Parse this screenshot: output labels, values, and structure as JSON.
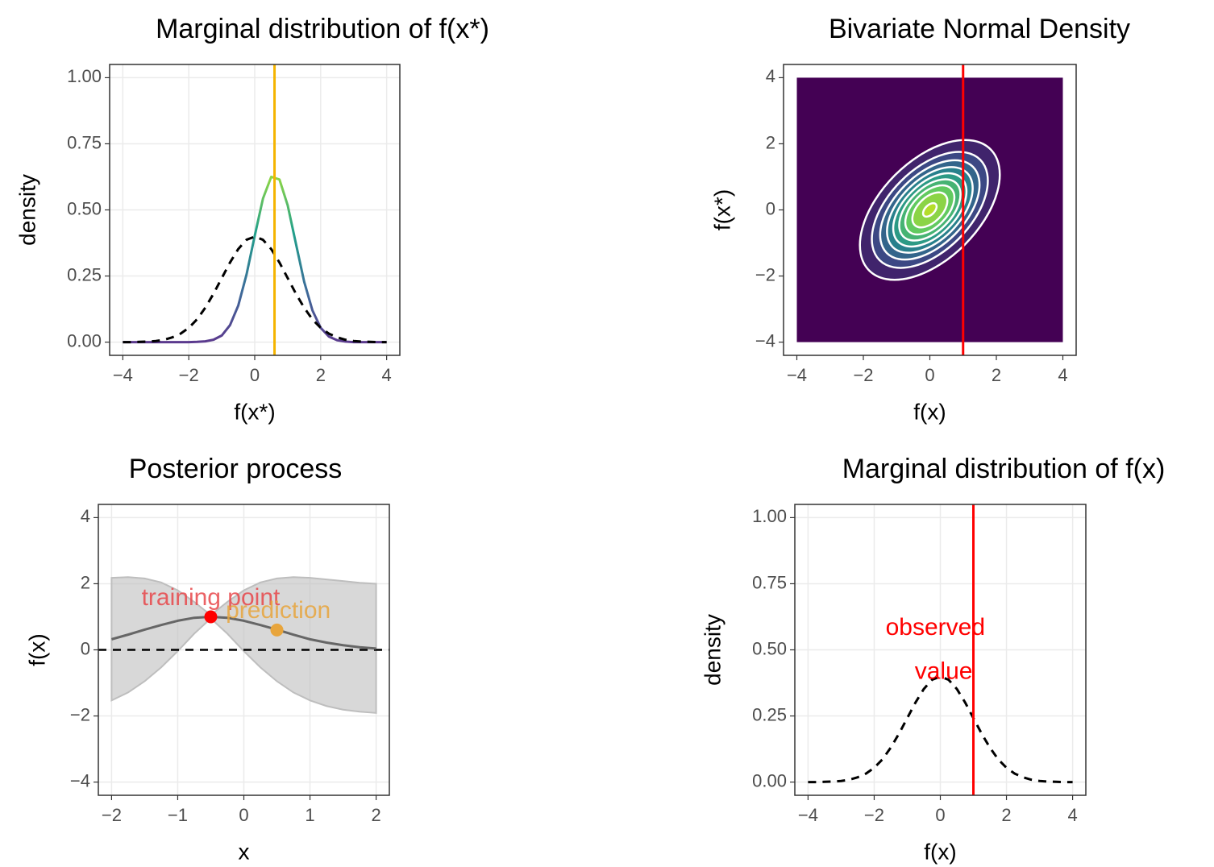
{
  "chart_data": [
    {
      "type": "line",
      "title": "Marginal distribution of f(x*)",
      "xlabel": "f(x*)",
      "ylabel": "density",
      "x": [
        -4,
        -3.75,
        -3.5,
        -3.25,
        -3,
        -2.75,
        -2.5,
        -2.25,
        -2,
        -1.75,
        -1.5,
        -1.25,
        -1,
        -0.75,
        -0.5,
        -0.25,
        0,
        0.25,
        0.5,
        0.75,
        1,
        1.25,
        1.5,
        1.75,
        2,
        2.25,
        2.5,
        2.75,
        3,
        3.25,
        3.5,
        3.75,
        4
      ],
      "series": [
        {
          "palette": [
            "#5b3a8e",
            "#3b6f9a",
            "#21a08a",
            "#8fd744"
          ],
          "values": [
            0,
            0,
            0,
            0,
            0,
            0,
            0,
            0,
            0,
            0.001,
            0.003,
            0.009,
            0.025,
            0.064,
            0.138,
            0.255,
            0.402,
            0.543,
            0.625,
            0.615,
            0.517,
            0.372,
            0.228,
            0.12,
            0.054,
            0.021,
            0.007,
            0.002,
            0,
            0,
            0,
            0,
            0
          ]
        },
        {
          "color": "#000000",
          "linetype": "dashed",
          "values": [
            0,
            0,
            0.001,
            0.002,
            0.004,
            0.009,
            0.018,
            0.032,
            0.054,
            0.086,
            0.13,
            0.183,
            0.242,
            0.301,
            0.352,
            0.387,
            0.399,
            0.387,
            0.352,
            0.301,
            0.242,
            0.183,
            0.13,
            0.086,
            0.054,
            0.032,
            0.018,
            0.009,
            0.004,
            0.002,
            0.001,
            0,
            0
          ]
        }
      ],
      "vline": {
        "x": 0.6,
        "color": "#f5b400"
      },
      "xlim": [
        -4.4,
        4.4
      ],
      "xticks": [
        {
          "value": -4,
          "label": "−4"
        },
        {
          "value": -2,
          "label": "−2"
        },
        0,
        2,
        4
      ],
      "ylim": [
        -0.05,
        1.05
      ],
      "yticks": [
        {
          "value": 0,
          "label": "0.00"
        },
        0.25,
        {
          "value": 0.5,
          "label": "0.50"
        },
        0.75,
        {
          "value": 1,
          "label": "1.00"
        }
      ],
      "grid": true
    },
    {
      "type": "contour",
      "title": "Bivariate Normal Density",
      "xlabel": "f(x)",
      "ylabel": "f(x*)",
      "correlation": 0.5,
      "levels": [
        0.02,
        0.04,
        0.06,
        0.08,
        0.1,
        0.12,
        0.14,
        0.16,
        0.18
      ],
      "raster_xlim": [
        -4,
        4
      ],
      "raster_ylim": [
        -4,
        4
      ],
      "background": "#440154",
      "contour_color": "#ffffff",
      "palette": [
        "#440154",
        "#3b528b",
        "#21908c",
        "#5dc963",
        "#bddf26"
      ],
      "vline": {
        "x": 1,
        "color": "#ff0000"
      },
      "xlim": [
        -4.4,
        4.4
      ],
      "xticks": [
        {
          "value": -4,
          "label": "−4"
        },
        {
          "value": -2,
          "label": "−2"
        },
        0,
        2,
        4
      ],
      "ylim": [
        -4.4,
        4.4
      ],
      "yticks": [
        {
          "value": -4,
          "label": "−4"
        },
        {
          "value": -2,
          "label": "−2"
        },
        0,
        2,
        4
      ],
      "grid": false
    },
    {
      "type": "line",
      "title": "Posterior process",
      "xlabel": "x",
      "ylabel": "f(x)",
      "x": [
        -2,
        -1.75,
        -1.5,
        -1.25,
        -1,
        -0.75,
        -0.5,
        -0.25,
        0,
        0.25,
        0.5,
        0.75,
        1,
        1.25,
        1.5,
        1.75,
        2
      ],
      "ribbon": {
        "color": "#bebebe",
        "upper": [
          2.18,
          2.2,
          2.16,
          2.04,
          1.8,
          1.45,
          1.05,
          1.45,
          1.8,
          2.04,
          2.16,
          2.2,
          2.18,
          2.13,
          2.08,
          2.03,
          2
        ],
        "lower": [
          -1.53,
          -1.29,
          -0.95,
          -0.53,
          -0.04,
          0.49,
          0.95,
          0.49,
          -0.04,
          -0.53,
          -0.95,
          -1.29,
          -1.53,
          -1.7,
          -1.81,
          -1.87,
          -1.91
        ]
      },
      "hline": {
        "y": 0,
        "color": "#000000"
      },
      "series": [
        {
          "color": "#666666",
          "values": [
            0.32,
            0.46,
            0.61,
            0.75,
            0.88,
            0.97,
            1,
            0.97,
            0.88,
            0.75,
            0.61,
            0.46,
            0.32,
            0.22,
            0.14,
            0.08,
            0.04
          ]
        }
      ],
      "points": [
        {
          "x": -0.5,
          "y": 1,
          "color": "#ff0000"
        },
        {
          "x": 0.5,
          "y": 0.6,
          "color": "#e8a53c"
        }
      ],
      "annotations": [
        {
          "text": "training point",
          "x": -0.5,
          "y": 1.55,
          "color": "#e8474a"
        },
        {
          "text": "prediction",
          "x": 0.52,
          "y": 1.15,
          "color": "#e8a53c"
        }
      ],
      "xlim": [
        -2.2,
        2.2
      ],
      "xticks": [
        {
          "value": -2,
          "label": "−2"
        },
        {
          "value": -1,
          "label": "−1"
        },
        0,
        1,
        2
      ],
      "ylim": [
        -4.4,
        4.4
      ],
      "yticks": [
        {
          "value": -4,
          "label": "−4"
        },
        {
          "value": -2,
          "label": "−2"
        },
        0,
        2,
        4
      ],
      "grid": true
    },
    {
      "type": "line",
      "title": "Marginal distribution of f(x)",
      "xlabel": "f(x)",
      "ylabel": "density",
      "x": [
        -4,
        -3.75,
        -3.5,
        -3.25,
        -3,
        -2.75,
        -2.5,
        -2.25,
        -2,
        -1.75,
        -1.5,
        -1.25,
        -1,
        -0.75,
        -0.5,
        -0.25,
        0,
        0.25,
        0.5,
        0.75,
        1,
        1.25,
        1.5,
        1.75,
        2,
        2.25,
        2.5,
        2.75,
        3,
        3.25,
        3.5,
        3.75,
        4
      ],
      "series": [
        {
          "color": "#000000",
          "linetype": "dashed",
          "values": [
            0,
            0,
            0.001,
            0.002,
            0.004,
            0.009,
            0.018,
            0.032,
            0.054,
            0.086,
            0.13,
            0.183,
            0.242,
            0.301,
            0.352,
            0.387,
            0.399,
            0.387,
            0.352,
            0.301,
            0.242,
            0.183,
            0.13,
            0.086,
            0.054,
            0.032,
            0.018,
            0.009,
            0.004,
            0.002,
            0.001,
            0,
            0
          ]
        }
      ],
      "vline": {
        "x": 1,
        "color": "#ff0000"
      },
      "annotations": [
        {
          "text": "observed",
          "x": -0.15,
          "y": 0.58,
          "color": "#ff0000"
        },
        {
          "text": "value",
          "x": 0.1,
          "y": 0.415,
          "color": "#ff0000"
        }
      ],
      "xlim": [
        -4.4,
        4.4
      ],
      "xticks": [
        {
          "value": -4,
          "label": "−4"
        },
        {
          "value": -2,
          "label": "−2"
        },
        0,
        2,
        4
      ],
      "ylim": [
        -0.05,
        1.05
      ],
      "yticks": [
        {
          "value": 0,
          "label": "0.00"
        },
        0.25,
        {
          "value": 0.5,
          "label": "0.50"
        },
        0.75,
        {
          "value": 1,
          "label": "1.00"
        }
      ],
      "grid": true
    }
  ]
}
